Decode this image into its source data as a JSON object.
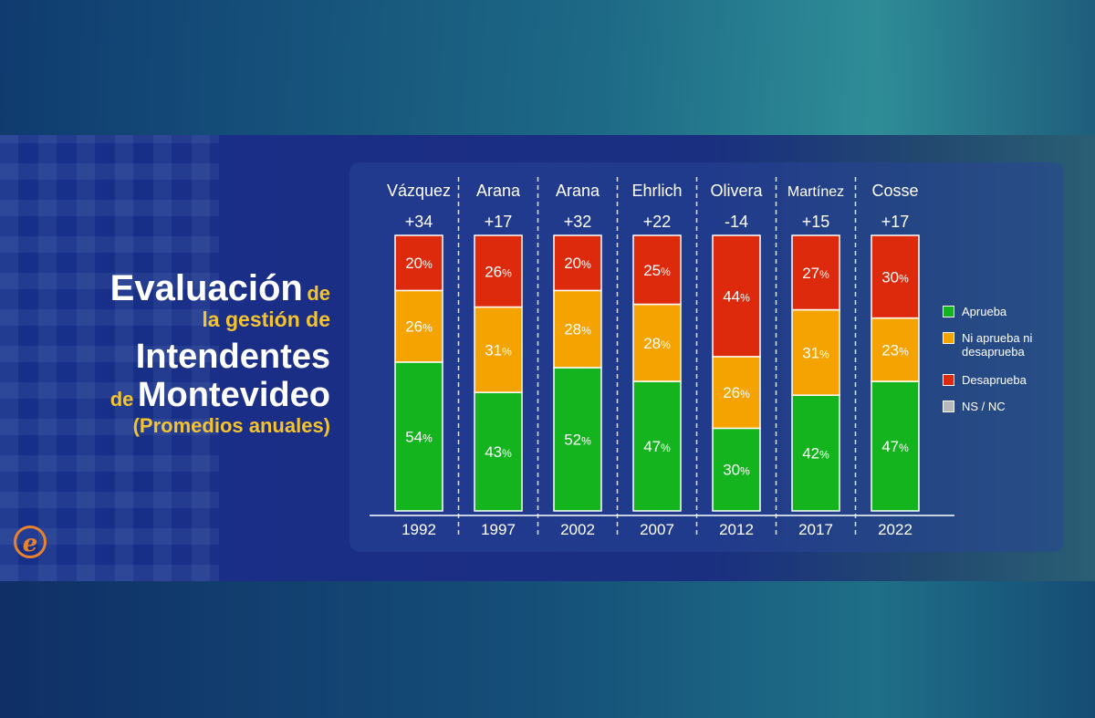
{
  "title": {
    "line1_main": "Evaluación",
    "line1_small": "de",
    "line2": "la gestión de",
    "line3": "Intendentes",
    "line4_small": "de",
    "line4_main": "Montevideo",
    "line5": "(Promedios anuales)"
  },
  "logo": {
    "glyph": "e"
  },
  "colors": {
    "aprueba": "#14b41e",
    "ni": "#f5a300",
    "desaprueba": "#dd2a0c",
    "nsnc": "#b9b9b9"
  },
  "legend": [
    {
      "key": "aprueba",
      "label": "Aprueba"
    },
    {
      "key": "ni",
      "label": "Ni aprueba ni desaprueba"
    },
    {
      "key": "desaprueba",
      "label": "Desaprueba"
    },
    {
      "key": "nsnc",
      "label": "NS / NC"
    }
  ],
  "chart_data": {
    "type": "bar",
    "stacked": true,
    "categories": [
      "1992",
      "1997",
      "2002",
      "2007",
      "2012",
      "2017",
      "2022"
    ],
    "intendentes": [
      "Vázquez",
      "Arana",
      "Arana",
      "Ehrlich",
      "Olivera",
      "Martínez",
      "Cosse"
    ],
    "net": [
      "+34",
      "+17",
      "+32",
      "+22",
      "-14",
      "+15",
      "+17"
    ],
    "series": [
      {
        "name": "Aprueba",
        "key": "aprueba",
        "values": [
          54,
          43,
          52,
          47,
          30,
          42,
          47
        ]
      },
      {
        "name": "Ni aprueba ni desaprueba",
        "key": "ni",
        "values": [
          26,
          31,
          28,
          28,
          26,
          31,
          23
        ]
      },
      {
        "name": "Desaprueba",
        "key": "desaprueba",
        "values": [
          20,
          26,
          20,
          25,
          44,
          27,
          30
        ]
      }
    ],
    "unit": "%",
    "ylim": [
      0,
      100
    ],
    "legend_position": "right",
    "grid": false
  }
}
